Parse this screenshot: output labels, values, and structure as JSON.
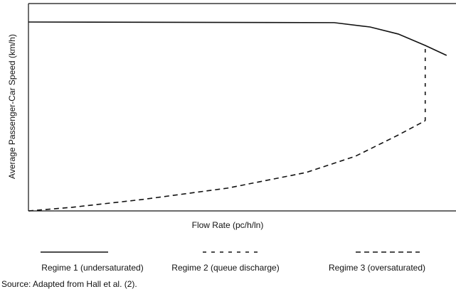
{
  "chart_data": {
    "type": "line",
    "x_label": "Flow Rate (pc/h/ln)",
    "y_label": "Average Passenger-Car Speed (km/h)",
    "source": "Source: Adapted from Hall et al. (2).",
    "xlim": [
      0,
      100
    ],
    "ylim": [
      0,
      100
    ],
    "series": [
      {
        "name": "Regime 1 (undersaturated)",
        "color": "#111111",
        "line_style": "solid",
        "x": [
          0,
          71.5,
          79.9,
          86.5,
          92.8,
          97.8
        ],
        "values": [
          91.1,
          90.8,
          88.7,
          85.3,
          79.8,
          75.0
        ]
      },
      {
        "name": "Regime 2 (queue discharge)",
        "color": "#111111",
        "line_style": "dotted-dash",
        "x": [
          92.8,
          92.8
        ],
        "values": [
          43.5,
          79.8
        ]
      },
      {
        "name": "Regime 3 (oversaturated)",
        "color": "#111111",
        "line_style": "dashed",
        "x": [
          0,
          10,
          26.6,
          46.6,
          64.9,
          76.5,
          86.5,
          92.8
        ],
        "values": [
          0,
          1.7,
          5.5,
          11.0,
          18.5,
          26.4,
          36.6,
          43.5
        ]
      }
    ]
  }
}
